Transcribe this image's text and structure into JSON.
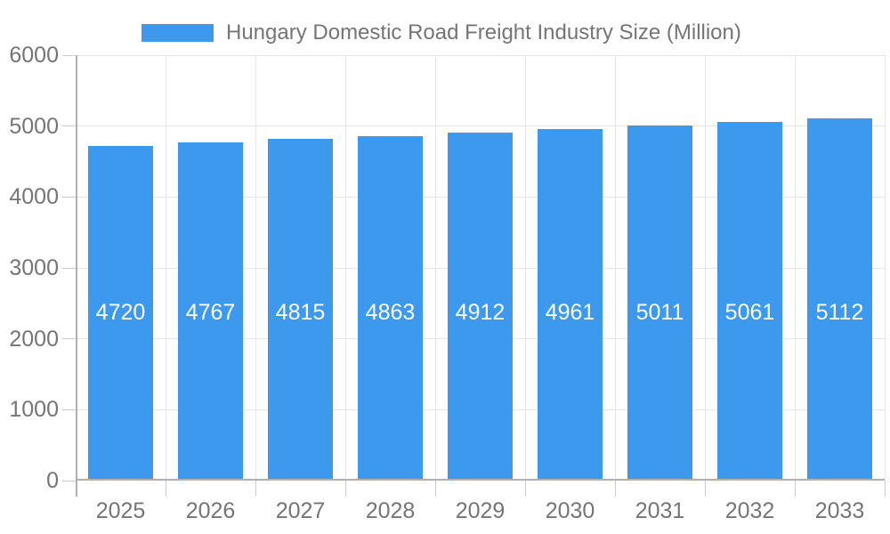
{
  "chart_data": {
    "type": "bar",
    "title": "Hungary Domestic Road Freight Industry Size (Million)",
    "categories": [
      "2025",
      "2026",
      "2027",
      "2028",
      "2029",
      "2030",
      "2031",
      "2032",
      "2033"
    ],
    "values": [
      4720,
      4767,
      4815,
      4863,
      4912,
      4961,
      5011,
      5061,
      5112
    ],
    "xlabel": "",
    "ylabel": "",
    "ylim": [
      0,
      6000
    ],
    "y_ticks": [
      0,
      1000,
      2000,
      3000,
      4000,
      5000,
      6000
    ],
    "grid": true,
    "legend_position": "top",
    "colors": {
      "bar": "#3D99EE",
      "gridline": "#E6E6E6",
      "axis_line": "#B0B0B0",
      "tick_mark": "#CCCCCC",
      "axis_text": "#757575",
      "value_text": "#FFFFFF"
    }
  }
}
